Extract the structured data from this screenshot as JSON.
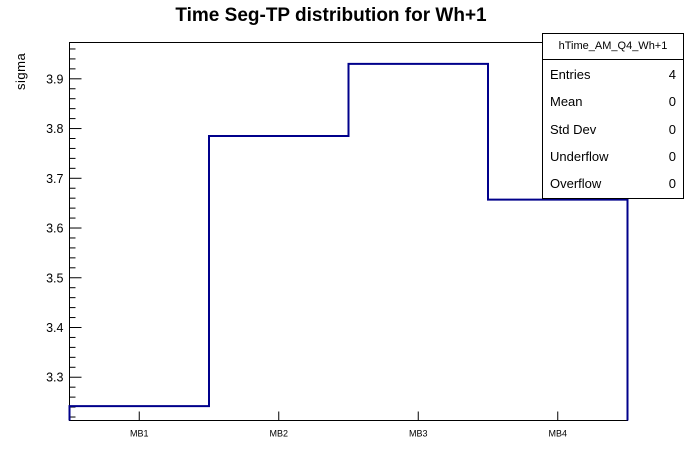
{
  "title": "Time Seg-TP distribution for Wh+1",
  "ylabel": "sigma",
  "stats_box": {
    "header": "hTime_AM_Q4_Wh+1",
    "rows": [
      {
        "label": "Entries",
        "value": "4"
      },
      {
        "label": "Mean",
        "value": "0"
      },
      {
        "label": "Std Dev",
        "value": "0"
      },
      {
        "label": "Underflow",
        "value": "0"
      },
      {
        "label": "Overflow",
        "value": "0"
      }
    ]
  },
  "chart_data": {
    "type": "line",
    "subtype": "step-histogram",
    "title": "Time Seg-TP distribution for Wh+1",
    "xlabel": "",
    "ylabel": "sigma",
    "categories": [
      "MB1",
      "MB2",
      "MB3",
      "MB4"
    ],
    "values": [
      3.242,
      3.785,
      3.93,
      3.657
    ],
    "ylim": [
      3.213,
      3.973
    ],
    "yticks_major": [
      3.3,
      3.4,
      3.5,
      3.6,
      3.7,
      3.8,
      3.9
    ],
    "ytick_minor_step": 0.02,
    "grid": false,
    "legend_position": "none",
    "line_color": "#00008b",
    "frame_color": "#000000",
    "background_color": "#ffffff"
  }
}
